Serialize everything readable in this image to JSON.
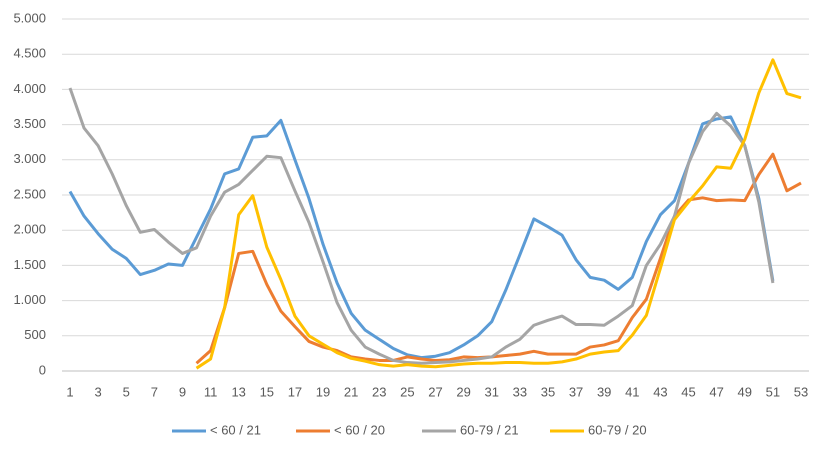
{
  "chart_data": {
    "type": "line",
    "x": [
      1,
      2,
      3,
      4,
      5,
      6,
      7,
      8,
      9,
      10,
      11,
      12,
      13,
      14,
      15,
      16,
      17,
      18,
      19,
      20,
      21,
      22,
      23,
      24,
      25,
      26,
      27,
      28,
      29,
      30,
      31,
      32,
      33,
      34,
      35,
      36,
      37,
      38,
      39,
      40,
      41,
      42,
      43,
      44,
      45,
      46,
      47,
      48,
      49,
      50,
      51,
      52,
      53
    ],
    "xlim": [
      1,
      53
    ],
    "xticks": [
      1,
      3,
      5,
      7,
      9,
      11,
      13,
      15,
      17,
      19,
      21,
      23,
      25,
      27,
      29,
      31,
      33,
      35,
      37,
      39,
      41,
      43,
      45,
      47,
      49,
      51,
      53
    ],
    "ylim": [
      0,
      5000
    ],
    "yticks": [
      0,
      500,
      {
        "value": 1000,
        "label": "1.000"
      },
      {
        "value": 1500,
        "label": "1.500"
      },
      {
        "value": 2000,
        "label": "2.000"
      },
      {
        "value": 2500,
        "label": "2.500"
      },
      {
        "value": 3000,
        "label": "3.000"
      },
      {
        "value": 3500,
        "label": "3.500"
      },
      {
        "value": 4000,
        "label": "4.000"
      },
      {
        "value": 4500,
        "label": "4.500"
      },
      {
        "value": 5000,
        "label": "5.000"
      }
    ],
    "grid": true,
    "legend": "bottom",
    "series": [
      {
        "name": "< 60 / 21",
        "color": "#5b9bd5",
        "values": [
          2550,
          2200,
          1950,
          1730,
          1600,
          1370,
          1430,
          1520,
          1500,
          1900,
          2300,
          2800,
          2870,
          3320,
          3340,
          3560,
          3000,
          2450,
          1800,
          1250,
          820,
          580,
          450,
          320,
          230,
          190,
          210,
          260,
          370,
          500,
          700,
          1150,
          1650,
          2160,
          2050,
          1930,
          1580,
          1330,
          1290,
          1160,
          1330,
          1840,
          2220,
          2420,
          2950,
          3510,
          3580,
          3610,
          3200,
          2450,
          1280,
          null,
          null
        ]
      },
      {
        "name": "< 60 / 20",
        "color": "#ed7d31",
        "values": [
          null,
          null,
          null,
          null,
          null,
          null,
          null,
          null,
          null,
          110,
          290,
          900,
          1670,
          1700,
          1230,
          850,
          630,
          420,
          340,
          290,
          200,
          170,
          150,
          150,
          200,
          170,
          150,
          160,
          200,
          190,
          200,
          220,
          240,
          280,
          240,
          240,
          240,
          340,
          370,
          430,
          760,
          1020,
          1600,
          2200,
          2430,
          2460,
          2420,
          2430,
          2420,
          2790,
          3080,
          2560,
          2670
        ]
      },
      {
        "name": "60-79 / 21",
        "color": "#a5a5a5",
        "values": [
          4020,
          3450,
          3200,
          2800,
          2350,
          1970,
          2010,
          1830,
          1670,
          1750,
          2200,
          2540,
          2650,
          2850,
          3050,
          3030,
          2560,
          2110,
          1550,
          970,
          580,
          340,
          240,
          150,
          120,
          110,
          120,
          130,
          150,
          170,
          200,
          340,
          450,
          650,
          720,
          780,
          660,
          660,
          650,
          780,
          930,
          1500,
          1800,
          2200,
          2950,
          3400,
          3660,
          3480,
          3200,
          2400,
          1250,
          null,
          null
        ]
      },
      {
        "name": "60-79 / 20",
        "color": "#ffc000",
        "values": [
          null,
          null,
          null,
          null,
          null,
          null,
          null,
          null,
          null,
          40,
          170,
          900,
          2220,
          2490,
          1760,
          1300,
          780,
          500,
          380,
          260,
          180,
          140,
          90,
          70,
          90,
          70,
          60,
          80,
          100,
          110,
          110,
          120,
          120,
          110,
          110,
          130,
          170,
          240,
          270,
          290,
          510,
          790,
          1460,
          2150,
          2400,
          2630,
          2900,
          2880,
          3290,
          3950,
          4420,
          3940,
          3880
        ]
      }
    ]
  }
}
